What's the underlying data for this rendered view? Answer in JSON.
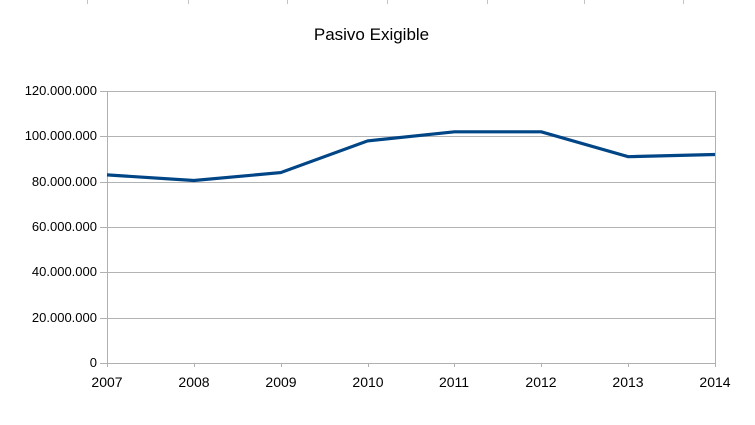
{
  "chart_data": {
    "type": "line",
    "title": "Pasivo Exigible",
    "categories": [
      "2007",
      "2008",
      "2009",
      "2010",
      "2011",
      "2012",
      "2013",
      "2014"
    ],
    "series": [
      {
        "name": "Pasivo Exigible",
        "values": [
          83000000,
          80500000,
          84000000,
          98000000,
          102000000,
          102000000,
          91000000,
          92000000
        ]
      }
    ],
    "xlabel": "",
    "ylabel": "",
    "ylim": [
      0,
      120000000
    ],
    "y_tick_values": [
      0,
      20000000,
      40000000,
      60000000,
      80000000,
      100000000,
      120000000
    ],
    "y_tick_labels": [
      "0",
      "20.000.000",
      "40.000.000",
      "60.000.000",
      "80.000.000",
      "100.000.000",
      "120.000.000"
    ],
    "grid": "horizontal",
    "legend": "none",
    "colors": {
      "line": "#004586",
      "gridline": "#b3b3b3",
      "axis": "#b0b0b0",
      "ruler_tick": "#c3c3c3",
      "text": "#000000",
      "background": "#ffffff"
    }
  }
}
